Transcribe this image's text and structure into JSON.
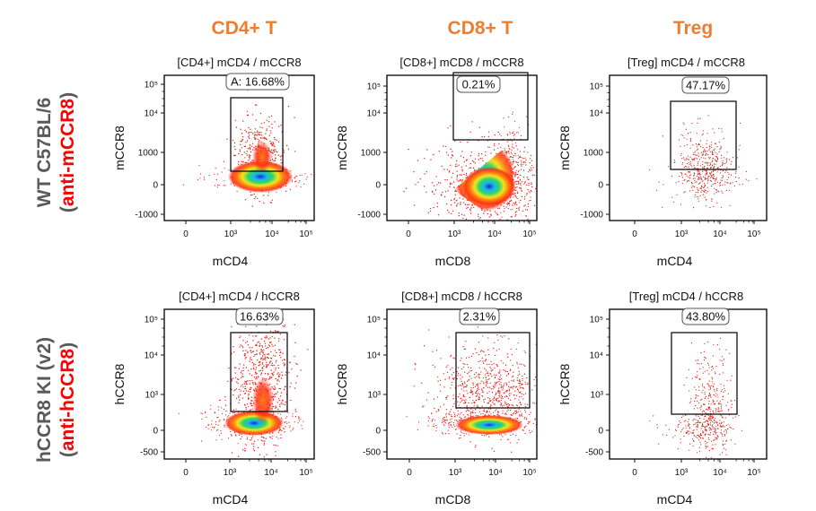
{
  "colors": {
    "col_header": "#ED7D31",
    "row_label_gray": "#595959",
    "row_label_red": "#FF0000"
  },
  "columns": [
    "CD4+ T",
    "CD8+ T",
    "Treg"
  ],
  "rows": [
    {
      "label_main": "WT C57BL/6",
      "label_sub_open": "(",
      "label_sub_red": "anti-mCCR8",
      "label_sub_close": ")"
    },
    {
      "label_main": "hCCR8 KI (v2)",
      "label_sub_open": "(",
      "label_sub_red": "anti-hCCR8",
      "label_sub_close": ")"
    }
  ],
  "chart_data": [
    {
      "type": "scatter",
      "title": "[CD4+] mCD4 / mCCR8",
      "xlabel": "mCD4",
      "ylabel": "mCCR8",
      "x_ticks": [
        "0",
        "10³",
        "10⁴",
        "10⁵"
      ],
      "y_ticks": [
        "-1000",
        "0",
        "1000",
        "10⁴",
        "10⁵"
      ],
      "gate_label": "A: 16.68%",
      "gate_percent": 16.68,
      "event_density": "high"
    },
    {
      "type": "scatter",
      "title": "[CD8+] mCD8 / mCCR8",
      "xlabel": "mCD8",
      "ylabel": "mCCR8",
      "x_ticks": [
        "0",
        "10³",
        "10⁴",
        "10⁵"
      ],
      "y_ticks": [
        "-1000",
        "0",
        "1000",
        "10⁴",
        "10⁵"
      ],
      "gate_label": "0.21%",
      "gate_percent": 0.21,
      "event_density": "high"
    },
    {
      "type": "scatter",
      "title": "[Treg] mCD4 / mCCR8",
      "xlabel": "mCD4",
      "ylabel": "mCCR8",
      "x_ticks": [
        "0",
        "10³",
        "10⁴",
        "10⁵"
      ],
      "y_ticks": [
        "-1000",
        "0",
        "1000",
        "10⁴",
        "10⁵"
      ],
      "gate_label": "47.17%",
      "gate_percent": 47.17,
      "event_density": "low"
    },
    {
      "type": "scatter",
      "title": "[CD4+] mCD4 / hCCR8",
      "xlabel": "mCD4",
      "ylabel": "hCCR8",
      "x_ticks": [
        "0",
        "10³",
        "10⁴",
        "10⁵"
      ],
      "y_ticks": [
        "-500",
        "0",
        "10³",
        "10⁴",
        "10⁵"
      ],
      "gate_label": "16.63%",
      "gate_percent": 16.63,
      "event_density": "high"
    },
    {
      "type": "scatter",
      "title": "[CD8+] mCD8 / hCCR8",
      "xlabel": "mCD8",
      "ylabel": "hCCR8",
      "x_ticks": [
        "0",
        "10³",
        "10⁴",
        "10⁵"
      ],
      "y_ticks": [
        "-500",
        "0",
        "10³",
        "10⁴",
        "10⁵"
      ],
      "gate_label": "2.31%",
      "gate_percent": 2.31,
      "event_density": "high"
    },
    {
      "type": "scatter",
      "title": "[Treg] mCD4 / hCCR8",
      "xlabel": "mCD4",
      "ylabel": "hCCR8",
      "x_ticks": [
        "0",
        "10³",
        "10⁴",
        "10⁵"
      ],
      "y_ticks": [
        "-500",
        "0",
        "10³",
        "10⁴",
        "10⁵"
      ],
      "gate_label": "43.80%",
      "gate_percent": 43.8,
      "event_density": "low"
    }
  ]
}
